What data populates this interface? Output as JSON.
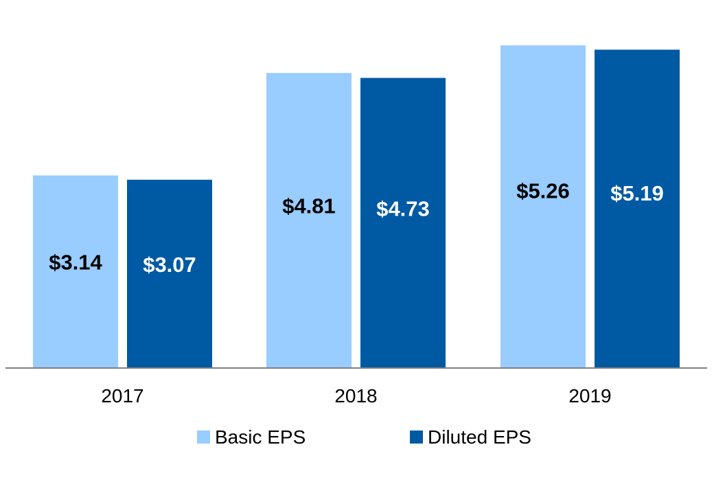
{
  "chart_data": {
    "type": "bar",
    "title": "",
    "xlabel": "",
    "ylabel": "",
    "categories": [
      "2017",
      "2018",
      "2019"
    ],
    "series": [
      {
        "name": "Basic EPS",
        "values": [
          3.14,
          4.81,
          5.26
        ],
        "labels": [
          "$3.14",
          "$4.81",
          "$5.26"
        ],
        "color": "#99ccff",
        "label_color": "#000000"
      },
      {
        "name": "Diluted EPS",
        "values": [
          3.07,
          4.73,
          5.19
        ],
        "labels": [
          "$3.07",
          "$4.73",
          "$5.19"
        ],
        "color": "#0059a3",
        "label_color": "#ffffff"
      }
    ],
    "ylim": [
      0,
      6.0
    ],
    "grid": false,
    "legend_position": "bottom",
    "axis_color": "#808080"
  }
}
